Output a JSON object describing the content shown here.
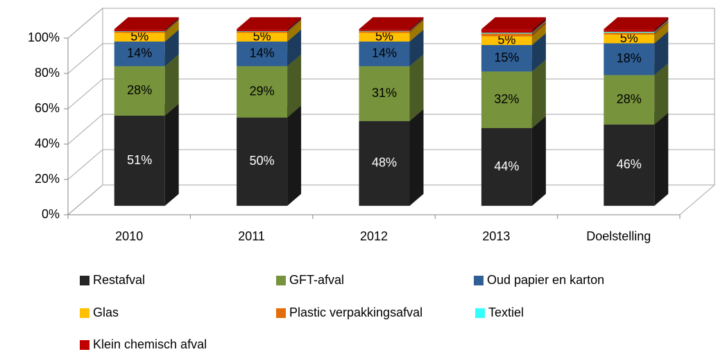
{
  "chart_data": {
    "type": "bar3d_stacked",
    "categories": [
      "2010",
      "2011",
      "2012",
      "2013",
      "Doelstelling"
    ],
    "series": [
      {
        "name": "Restafval",
        "color": "#262626",
        "values": [
          51,
          50,
          48,
          44,
          46
        ],
        "value_labels": [
          "51%",
          "50%",
          "48%",
          "44%",
          "46%"
        ]
      },
      {
        "name": "GFT-afval",
        "color": "#77933c",
        "values": [
          28,
          29,
          31,
          32,
          28
        ],
        "value_labels": [
          "28%",
          "29%",
          "31%",
          "32%",
          "28%"
        ]
      },
      {
        "name": "Oud papier en karton",
        "color": "#2f5f95",
        "values": [
          14,
          14,
          14,
          15,
          18
        ],
        "value_labels": [
          "14%",
          "14%",
          "14%",
          "15%",
          "18%"
        ]
      },
      {
        "name": "Glas",
        "color": "#ffc000",
        "values": [
          5,
          5,
          5,
          5,
          5
        ],
        "value_labels": [
          "5%",
          "5%",
          "5%",
          "5%",
          "5%"
        ]
      },
      {
        "name": "Plastic verpakkingsafval",
        "color": "#e46c0a",
        "values": [
          0.5,
          0.5,
          0.7,
          1.5,
          1
        ]
      },
      {
        "name": "Textiel",
        "color": "#33ffff",
        "values": [
          0.3,
          0.3,
          0.3,
          0.5,
          0.5
        ]
      },
      {
        "name": "Klein chemisch afval",
        "color": "#c00000",
        "values": [
          1.2,
          1.2,
          1,
          2,
          1.5
        ]
      }
    ],
    "ylim": [
      0,
      100
    ],
    "yticks": [
      {
        "value": 0,
        "label": "0%"
      },
      {
        "value": 20,
        "label": "20%"
      },
      {
        "value": 40,
        "label": "40%"
      },
      {
        "value": 60,
        "label": "60%"
      },
      {
        "value": 80,
        "label": "80%"
      },
      {
        "value": 100,
        "label": "100%"
      }
    ],
    "grid": true,
    "stacked": true
  }
}
